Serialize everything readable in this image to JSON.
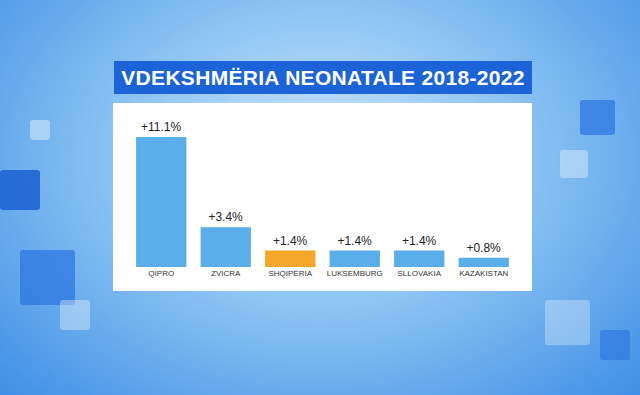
{
  "chart_data": {
    "type": "bar",
    "title": "VDEKSHMËRIA NEONATALE 2018-2022",
    "categories": [
      "QIPRO",
      "ZVICRA",
      "SHQIPËRIA",
      "LUKSEMBURG",
      "SLLOVAKIA",
      "KAZAKISTAN"
    ],
    "values": [
      11.1,
      3.4,
      1.4,
      1.4,
      1.4,
      0.8
    ],
    "value_labels": [
      "+11.1%",
      "+3.4%",
      "+1.4%",
      "+1.4%",
      "+1.4%",
      "+0.8%"
    ],
    "colors": [
      "#5aaeea",
      "#5aaeea",
      "#f4a72a",
      "#5aaeea",
      "#5aaeea",
      "#5aaeea"
    ],
    "ylim": [
      0,
      11.1
    ],
    "data_labels": true,
    "tick_labels": "x",
    "grid": false
  }
}
